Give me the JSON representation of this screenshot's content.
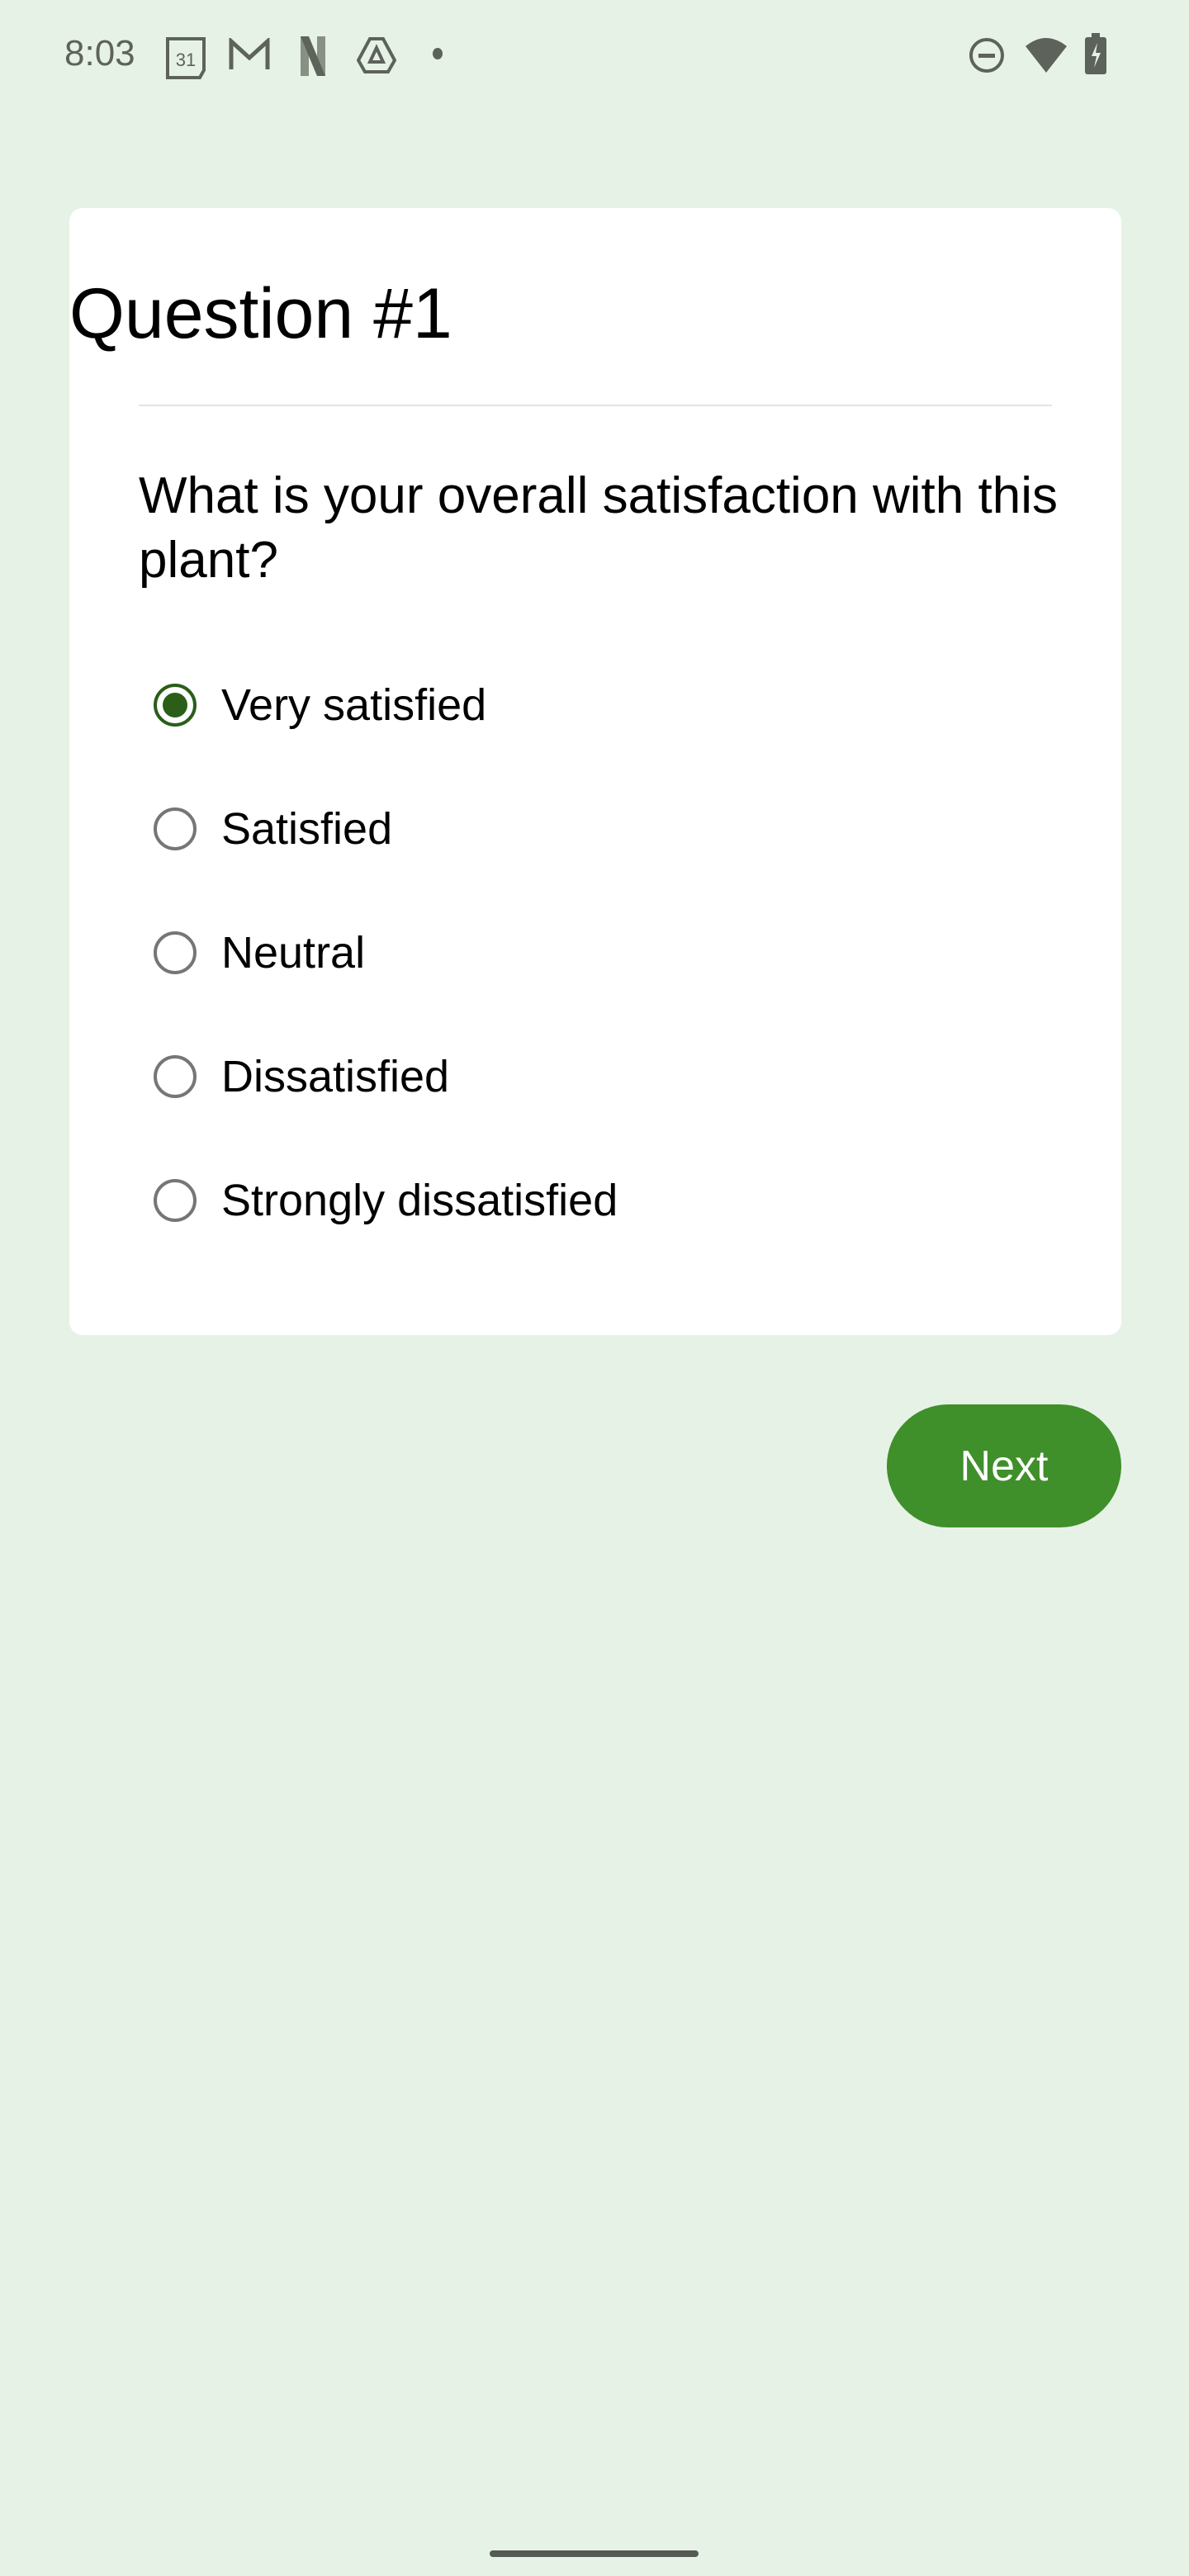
{
  "status_bar": {
    "time": "8:03",
    "calendar_day": "31",
    "left_icons": [
      "calendar-icon",
      "gmail-icon",
      "netflix-icon",
      "drive-icon",
      "dot-icon"
    ],
    "right_icons": [
      "do-not-disturb-icon",
      "wifi-icon",
      "battery-charging-icon"
    ]
  },
  "card": {
    "title": "Question #1",
    "question": "What is your overall satisfaction with this plant?",
    "options": [
      {
        "label": "Very satisfied",
        "selected": true
      },
      {
        "label": "Satisfied",
        "selected": false
      },
      {
        "label": "Neutral",
        "selected": false
      },
      {
        "label": "Dissatisfied",
        "selected": false
      },
      {
        "label": "Strongly dissatisfied",
        "selected": false
      }
    ]
  },
  "next_label": "Next",
  "colors": {
    "background": "#e7f2e6",
    "accent": "#3f8f2a",
    "radio_selected": "#2a5e19"
  }
}
